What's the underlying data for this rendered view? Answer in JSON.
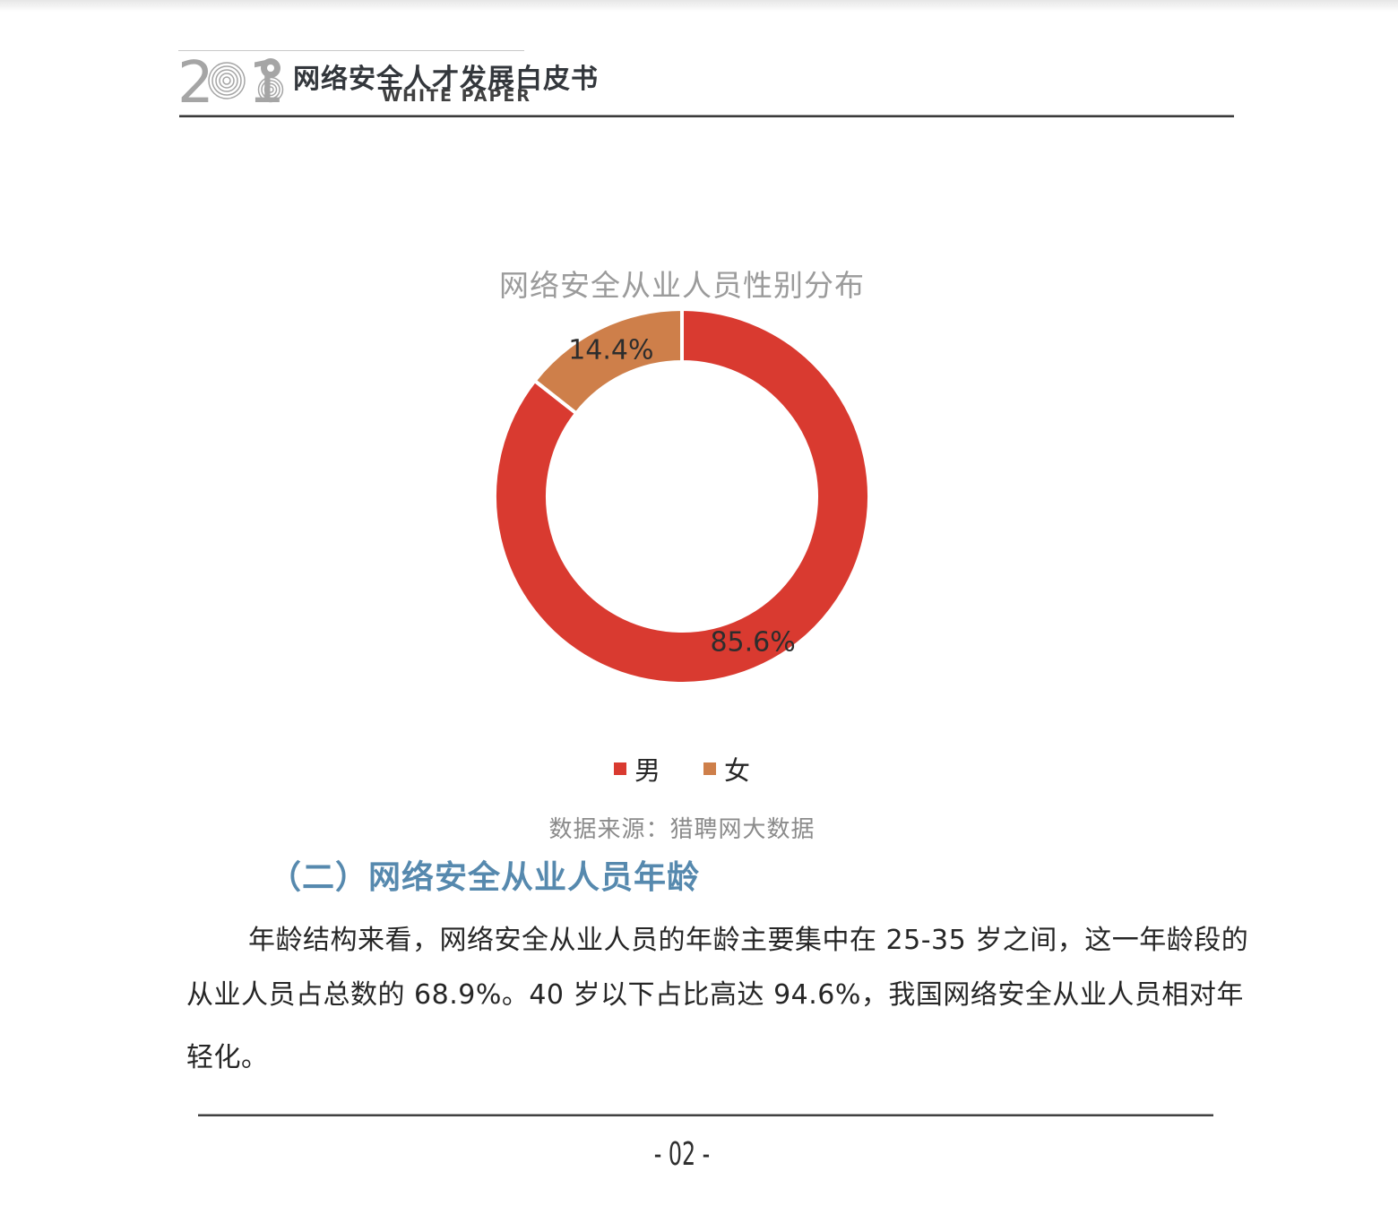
{
  "header": {
    "year": "2018",
    "title_cn": "网络安全人才发展白皮书",
    "title_en": "WHITE PAPER"
  },
  "chart_data": {
    "type": "pie",
    "subtype": "donut",
    "title": "网络安全从业人员性别分布",
    "labels": [
      "男",
      "女"
    ],
    "values": [
      85.6,
      14.4
    ],
    "value_labels": [
      "85.6%",
      "14.4%"
    ],
    "colors": [
      "#d93a30",
      "#ce7f4a"
    ],
    "legend_position": "bottom",
    "source": "数据来源：猎聘网大数据"
  },
  "section": {
    "heading": "（二）网络安全从业人员年龄"
  },
  "paragraph": {
    "lines": [
      "年龄结构来看，网络安全从业人员的年龄主要集中在 25-35 岁之间，这一年龄段的",
      "从业人员占总数的 68.9%。40 岁以下占比高达 94.6%，我国网络安全从业人员相对年",
      "轻化。"
    ]
  },
  "footer": {
    "page_number": "- 02 -"
  }
}
